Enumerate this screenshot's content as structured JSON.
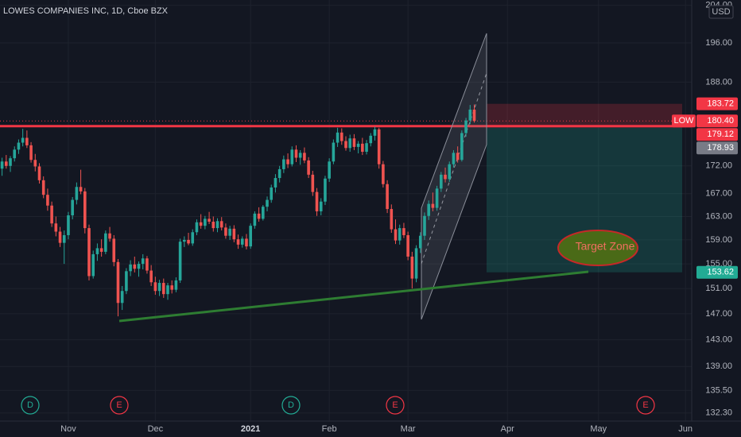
{
  "chart_data": {
    "type": "candlestick",
    "title": "LOWES COMPANIES INC, 1D, Cboe BZX",
    "currency": "USD",
    "log_scale": true,
    "grid": true,
    "up_color": "#26a69a",
    "down_color": "#ef5350",
    "ylim": [
      131.16,
      205.14
    ],
    "yticks": [
      {
        "value": 204,
        "label": "204.00"
      },
      {
        "value": 196,
        "label": "196.00"
      },
      {
        "value": 188,
        "label": "188.00"
      },
      {
        "value": 172,
        "label": "172.00"
      },
      {
        "value": 167,
        "label": "167.00"
      },
      {
        "value": 163,
        "label": "163.00"
      },
      {
        "value": 159,
        "label": "159.00"
      },
      {
        "value": 155,
        "label": "155.00"
      },
      {
        "value": 151,
        "label": "151.00"
      },
      {
        "value": 147,
        "label": "147.00"
      },
      {
        "value": 143,
        "label": "143.00"
      },
      {
        "value": 139,
        "label": "139.00"
      },
      {
        "value": 135.5,
        "label": "135.50"
      },
      {
        "value": 132.3,
        "label": "132.30"
      }
    ],
    "categories": [
      null,
      null,
      null,
      null,
      null,
      null,
      null,
      null,
      null,
      null,
      null,
      null,
      null,
      null,
      null,
      null,
      "Nov",
      null,
      null,
      null,
      null,
      null,
      null,
      null,
      null,
      null,
      null,
      null,
      null,
      null,
      null,
      null,
      null,
      null,
      null,
      null,
      null,
      "Dec",
      null,
      null,
      null,
      null,
      null,
      null,
      null,
      null,
      null,
      null,
      null,
      null,
      null,
      null,
      null,
      null,
      null,
      null,
      null,
      null,
      null,
      null,
      "2021",
      null,
      null,
      null,
      null,
      null,
      null,
      null,
      null,
      null,
      null,
      null,
      null,
      null,
      null,
      null,
      null,
      null,
      null,
      "Feb",
      null,
      null,
      null,
      null,
      null,
      null,
      null,
      null,
      null,
      null,
      null,
      null,
      null,
      null,
      null,
      null,
      null,
      null,
      "Mar",
      null,
      null,
      null,
      null,
      null,
      null,
      null,
      null,
      null,
      null,
      null,
      null,
      null,
      null,
      null,
      null,
      null,
      null,
      null,
      null,
      null,
      null,
      null,
      "Apr",
      null,
      null,
      null,
      null,
      null,
      null,
      null,
      null,
      null,
      null,
      null,
      null,
      null,
      null,
      null,
      null,
      null,
      null,
      null,
      null,
      null,
      "May",
      null,
      null,
      null,
      null,
      null,
      null,
      null,
      null,
      null,
      null,
      null,
      null,
      null,
      null,
      null,
      null,
      null,
      null,
      null,
      null,
      "Jun",
      null
    ],
    "ohlc": [
      [
        171.5,
        173.5,
        170.2,
        172.8
      ],
      [
        172.8,
        174.0,
        171.5,
        172.0
      ],
      [
        172.0,
        173.8,
        170.9,
        173.4
      ],
      [
        173.4,
        175.6,
        172.8,
        175.0
      ],
      [
        175.0,
        176.9,
        174.2,
        176.3
      ],
      [
        176.3,
        178.9,
        175.6,
        177.2
      ],
      [
        177.2,
        178.6,
        175.3,
        175.8
      ],
      [
        175.8,
        176.4,
        172.6,
        173.1
      ],
      [
        173.1,
        174.2,
        171.0,
        171.9
      ],
      [
        171.9,
        172.5,
        168.8,
        169.4
      ],
      [
        169.4,
        170.1,
        166.2,
        166.8
      ],
      [
        166.8,
        167.9,
        164.0,
        164.9
      ],
      [
        164.9,
        165.6,
        161.2,
        161.8
      ],
      [
        161.8,
        163.0,
        159.6,
        160.4
      ],
      [
        160.4,
        161.2,
        157.8,
        158.5
      ],
      [
        158.5,
        160.6,
        155.0,
        159.8
      ],
      [
        159.8,
        163.8,
        159.1,
        163.2
      ],
      [
        163.2,
        166.4,
        162.5,
        165.9
      ],
      [
        165.9,
        169.0,
        165.1,
        168.2
      ],
      [
        168.2,
        171.3,
        166.9,
        167.4
      ],
      [
        167.4,
        168.0,
        160.1,
        161.0
      ],
      [
        161.0,
        161.6,
        152.3,
        153.0
      ],
      [
        153.0,
        157.2,
        152.6,
        156.6
      ],
      [
        156.6,
        158.4,
        155.5,
        157.6
      ],
      [
        157.6,
        159.1,
        156.2,
        157.0
      ],
      [
        157.0,
        160.6,
        156.6,
        160.1
      ],
      [
        160.1,
        161.2,
        158.7,
        159.2
      ],
      [
        159.2,
        159.8,
        154.6,
        155.3
      ],
      [
        155.3,
        155.8,
        146.6,
        148.7
      ],
      [
        148.7,
        151.4,
        147.6,
        150.6
      ],
      [
        150.6,
        154.3,
        150.1,
        153.8
      ],
      [
        153.8,
        155.6,
        153.0,
        154.9
      ],
      [
        154.9,
        156.2,
        153.6,
        154.2
      ],
      [
        154.2,
        155.4,
        152.9,
        155.0
      ],
      [
        155.0,
        156.6,
        154.1,
        155.9
      ],
      [
        155.9,
        156.3,
        153.4,
        153.9
      ],
      [
        153.9,
        154.8,
        151.4,
        152.0
      ],
      [
        152.0,
        152.9,
        150.0,
        150.6
      ],
      [
        150.6,
        152.4,
        149.8,
        151.9
      ],
      [
        151.9,
        152.6,
        149.5,
        150.1
      ],
      [
        150.1,
        151.9,
        149.2,
        151.5
      ],
      [
        151.5,
        152.3,
        150.2,
        150.8
      ],
      [
        150.8,
        152.8,
        150.4,
        152.3
      ],
      [
        152.3,
        159.2,
        151.9,
        158.7
      ],
      [
        158.7,
        159.6,
        157.8,
        159.0
      ],
      [
        159.0,
        160.2,
        158.1,
        158.4
      ],
      [
        158.4,
        160.8,
        158.0,
        160.3
      ],
      [
        160.3,
        162.5,
        159.8,
        162.0
      ],
      [
        162.0,
        163.4,
        160.9,
        161.4
      ],
      [
        161.4,
        163.1,
        160.8,
        162.6
      ],
      [
        162.6,
        163.8,
        161.7,
        162.1
      ],
      [
        162.1,
        163.0,
        160.4,
        161.0
      ],
      [
        161.0,
        162.7,
        160.3,
        162.2
      ],
      [
        162.2,
        162.9,
        160.6,
        161.1
      ],
      [
        161.1,
        161.8,
        159.2,
        159.7
      ],
      [
        159.7,
        161.4,
        159.0,
        160.9
      ],
      [
        160.9,
        161.5,
        158.6,
        159.1
      ],
      [
        159.1,
        159.9,
        157.5,
        158.2
      ],
      [
        158.2,
        159.6,
        157.7,
        159.2
      ],
      [
        159.2,
        160.0,
        157.4,
        157.9
      ],
      [
        157.9,
        161.8,
        157.5,
        161.4
      ],
      [
        161.4,
        163.9,
        160.9,
        163.5
      ],
      [
        163.5,
        164.6,
        162.1,
        162.6
      ],
      [
        162.6,
        165.0,
        162.3,
        164.7
      ],
      [
        164.7,
        166.5,
        163.9,
        165.9
      ],
      [
        165.9,
        168.6,
        165.4,
        168.1
      ],
      [
        168.1,
        170.5,
        167.2,
        169.8
      ],
      [
        169.8,
        172.0,
        169.0,
        171.4
      ],
      [
        171.4,
        173.9,
        170.7,
        173.2
      ],
      [
        173.2,
        174.3,
        171.6,
        172.3
      ],
      [
        172.3,
        175.6,
        171.9,
        175.0
      ],
      [
        175.0,
        175.8,
        172.7,
        173.5
      ],
      [
        173.5,
        174.9,
        172.2,
        174.4
      ],
      [
        174.4,
        175.4,
        172.5,
        173.0
      ],
      [
        173.0,
        173.6,
        169.8,
        170.4
      ],
      [
        170.4,
        171.1,
        166.6,
        167.3
      ],
      [
        167.3,
        168.0,
        163.1,
        163.9
      ],
      [
        163.9,
        166.2,
        163.2,
        165.6
      ],
      [
        165.6,
        170.2,
        165.0,
        169.7
      ],
      [
        169.7,
        173.4,
        169.1,
        172.8
      ],
      [
        172.8,
        176.9,
        172.3,
        176.3
      ],
      [
        176.3,
        179.1,
        175.5,
        178.2
      ],
      [
        178.2,
        179.0,
        175.9,
        176.6
      ],
      [
        176.6,
        177.5,
        174.8,
        175.3
      ],
      [
        175.3,
        177.8,
        174.6,
        177.1
      ],
      [
        177.1,
        177.9,
        174.9,
        175.5
      ],
      [
        175.5,
        176.6,
        174.3,
        176.1
      ],
      [
        176.1,
        177.2,
        174.0,
        174.6
      ],
      [
        174.6,
        176.8,
        174.1,
        176.2
      ],
      [
        176.2,
        178.1,
        175.6,
        177.6
      ],
      [
        177.6,
        179.3,
        176.7,
        178.8
      ],
      [
        178.8,
        179.1,
        171.5,
        172.3
      ],
      [
        172.3,
        172.9,
        168.1,
        168.7
      ],
      [
        168.7,
        169.4,
        163.6,
        164.3
      ],
      [
        164.3,
        165.1,
        160.2,
        160.8
      ],
      [
        160.8,
        162.5,
        158.3,
        158.9
      ],
      [
        158.9,
        161.6,
        158.2,
        161.0
      ],
      [
        161.0,
        161.9,
        159.3,
        159.8
      ],
      [
        159.8,
        160.4,
        155.6,
        156.2
      ],
      [
        156.2,
        157.0,
        151.0,
        152.6
      ],
      [
        152.6,
        158.1,
        152.0,
        157.6
      ],
      [
        157.6,
        160.3,
        156.8,
        159.7
      ],
      [
        159.7,
        163.7,
        159.0,
        163.1
      ],
      [
        163.1,
        165.8,
        162.4,
        165.2
      ],
      [
        165.2,
        167.2,
        163.9,
        164.5
      ],
      [
        164.5,
        168.4,
        164.0,
        167.9
      ],
      [
        167.9,
        170.9,
        167.3,
        170.4
      ],
      [
        170.4,
        171.7,
        169.0,
        169.6
      ],
      [
        169.6,
        172.8,
        169.1,
        172.3
      ],
      [
        172.3,
        174.9,
        171.7,
        174.4
      ],
      [
        174.4,
        175.6,
        172.6,
        173.1
      ],
      [
        173.1,
        178.6,
        172.8,
        178.1
      ],
      [
        178.1,
        181.0,
        177.4,
        180.5
      ],
      [
        180.5,
        183.5,
        179.8,
        182.6
      ],
      [
        182.6,
        183.6,
        180.1,
        180.4
      ],
      null,
      null,
      null,
      null,
      null,
      null,
      null,
      null,
      null,
      null,
      null,
      null,
      null,
      null,
      null,
      null,
      null,
      null,
      null,
      null,
      null,
      null,
      null,
      null,
      null,
      null,
      null,
      null,
      null,
      null,
      null,
      null,
      null,
      null,
      null,
      null,
      null,
      null,
      null,
      null,
      null,
      null,
      null,
      null,
      null,
      null,
      null,
      null,
      null,
      null,
      null,
      null
    ],
    "levels": [
      {
        "value": 183.72,
        "label": "183.72",
        "color": "#f23645"
      },
      {
        "value": 180.4,
        "label": "180.40",
        "name": "LOW",
        "color": "#f23645"
      },
      {
        "value": 179.12,
        "label": "179.12",
        "color": "#f23645"
      },
      {
        "value": 178.93,
        "label": "178.93",
        "color": "#787b86"
      },
      {
        "value": 153.62,
        "label": "153.62",
        "color": "#22ab94"
      }
    ],
    "annotation": "Target Zone",
    "events": [
      "D",
      "E",
      "D",
      "E",
      "E"
    ]
  }
}
